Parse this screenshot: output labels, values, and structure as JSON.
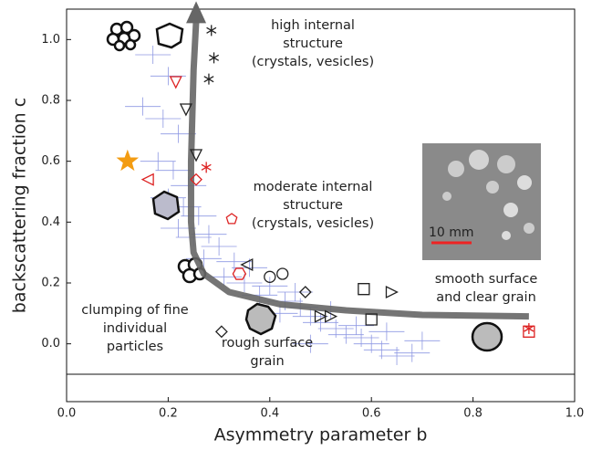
{
  "chart_data": {
    "type": "scatter",
    "xlabel": "Asymmetry parameter b",
    "ylabel": "backscattering fraction c",
    "xlim": [
      0.0,
      1.0
    ],
    "ylim": [
      -0.19,
      1.1
    ],
    "xticks": [
      {
        "value": 0.0,
        "label": "0.0"
      },
      {
        "value": 0.2,
        "label": "0.2"
      },
      {
        "value": 0.4,
        "label": "0.4"
      },
      {
        "value": 0.6,
        "label": "0.6"
      },
      {
        "value": 0.8,
        "label": "0.8"
      },
      {
        "value": 1.0,
        "label": "1.0"
      }
    ],
    "yticks": [
      {
        "value": 0.0,
        "label": "0.0"
      },
      {
        "value": 0.2,
        "label": "0.2"
      },
      {
        "value": 0.4,
        "label": "0.4"
      },
      {
        "value": 0.6,
        "label": "0.6"
      },
      {
        "value": 0.8,
        "label": "0.8"
      },
      {
        "value": 1.0,
        "label": "1.0"
      }
    ],
    "hline": -0.1,
    "cloud": {
      "color": "#3344cc",
      "xerr": 0.035,
      "yerr": 0.03,
      "x": [
        0.17,
        0.2,
        0.15,
        0.19,
        0.22,
        0.18,
        0.21,
        0.24,
        0.2,
        0.23,
        0.26,
        0.22,
        0.25,
        0.28,
        0.3,
        0.27,
        0.33,
        0.36,
        0.31,
        0.35,
        0.4,
        0.38,
        0.43,
        0.46,
        0.42,
        0.48,
        0.5,
        0.53,
        0.55,
        0.58,
        0.6,
        0.62,
        0.57,
        0.65,
        0.52,
        0.45,
        0.63,
        0.68,
        0.7,
        0.48
      ],
      "y": [
        0.95,
        0.88,
        0.78,
        0.74,
        0.69,
        0.6,
        0.57,
        0.52,
        0.48,
        0.45,
        0.42,
        0.38,
        0.35,
        0.36,
        0.32,
        0.28,
        0.27,
        0.25,
        0.22,
        0.2,
        0.19,
        0.16,
        0.14,
        0.12,
        0.1,
        0.09,
        0.07,
        0.05,
        0.03,
        0.02,
        0.0,
        -0.02,
        0.06,
        -0.04,
        0.11,
        0.17,
        0.04,
        -0.03,
        0.01,
        0.0
      ]
    },
    "curve": {
      "color": "#666666",
      "x": [
        0.91,
        0.7,
        0.55,
        0.42,
        0.32,
        0.27,
        0.25,
        0.245,
        0.245,
        0.25,
        0.255
      ],
      "y": [
        0.09,
        0.095,
        0.11,
        0.13,
        0.17,
        0.23,
        0.3,
        0.4,
        0.6,
        0.9,
        1.06
      ]
    },
    "series": [
      {
        "marker": "asterisk",
        "color": "#222222",
        "x": [
          0.285,
          0.29,
          0.28
        ],
        "y": [
          1.03,
          0.94,
          0.87
        ]
      },
      {
        "marker": "tri-down",
        "color": "#dd2222",
        "x": [
          0.215
        ],
        "y": [
          0.86
        ]
      },
      {
        "marker": "tri-down",
        "color": "#222222",
        "x": [
          0.235,
          0.255
        ],
        "y": [
          0.77,
          0.62
        ]
      },
      {
        "marker": "star5",
        "color": "#f39c12",
        "x": [
          0.12
        ],
        "y": [
          0.6
        ]
      },
      {
        "marker": "asterisk",
        "color": "#dd2222",
        "x": [
          0.275,
          0.91
        ],
        "y": [
          0.58,
          0.05
        ]
      },
      {
        "marker": "tri-left",
        "color": "#dd2222",
        "x": [
          0.16
        ],
        "y": [
          0.54
        ]
      },
      {
        "marker": "diamond",
        "color": "#dd2222",
        "x": [
          0.255
        ],
        "y": [
          0.54
        ]
      },
      {
        "marker": "pentagon",
        "color": "#dd2222",
        "x": [
          0.325
        ],
        "y": [
          0.41
        ]
      },
      {
        "marker": "hexagon",
        "color": "#dd2222",
        "x": [
          0.34
        ],
        "y": [
          0.23
        ]
      },
      {
        "marker": "square",
        "color": "#dd2222",
        "x": [
          0.91
        ],
        "y": [
          0.04
        ]
      },
      {
        "marker": "tri-left",
        "color": "#222222",
        "x": [
          0.355
        ],
        "y": [
          0.26
        ]
      },
      {
        "marker": "circle",
        "color": "#222222",
        "x": [
          0.4,
          0.425
        ],
        "y": [
          0.22,
          0.23
        ]
      },
      {
        "marker": "diamond",
        "color": "#222222",
        "x": [
          0.47,
          0.305
        ],
        "y": [
          0.17,
          0.04
        ]
      },
      {
        "marker": "square",
        "color": "#222222",
        "x": [
          0.585,
          0.6
        ],
        "y": [
          0.18,
          0.08
        ]
      },
      {
        "marker": "tri-right",
        "color": "#222222",
        "x": [
          0.64,
          0.5,
          0.52
        ],
        "y": [
          0.17,
          0.09,
          0.09
        ]
      }
    ],
    "annotations": [
      {
        "lines": [
          "high internal",
          "structure",
          "(crystals, vesicles)"
        ]
      },
      {
        "lines": [
          "moderate internal",
          "structure",
          "(crystals, vesicles)"
        ]
      },
      {
        "lines": [
          "smooth surface",
          "and clear grain"
        ]
      },
      {
        "lines": [
          "clumping of fine",
          "individual",
          "particles"
        ]
      },
      {
        "lines": [
          "rough surface",
          "grain"
        ]
      }
    ],
    "inset_label": "10 mm"
  }
}
